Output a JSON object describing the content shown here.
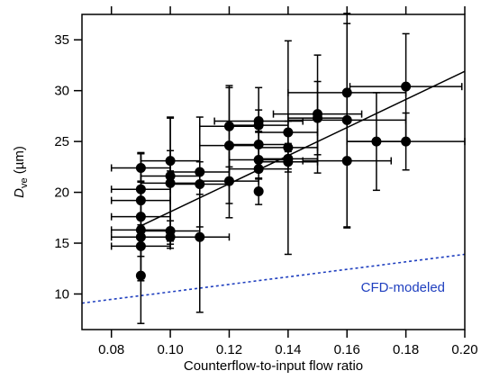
{
  "chart_data": {
    "type": "scatter",
    "xlabel": "Counterflow-to-input flow ratio",
    "ylabel_main": "D",
    "ylabel_sub": "ve",
    "ylabel_unit": " (µm)",
    "xlim": [
      0.07,
      0.2
    ],
    "ylim": [
      6.5,
      37.5
    ],
    "x_ticks": [
      0.08,
      0.1,
      0.12,
      0.14,
      0.16,
      0.18,
      0.2
    ],
    "x_tick_labels": [
      "0.08",
      "0.10",
      "0.12",
      "0.14",
      "0.16",
      "0.18",
      "0.20"
    ],
    "y_ticks": [
      10,
      15,
      20,
      25,
      30,
      35
    ],
    "y_tick_labels": [
      "10",
      "15",
      "20",
      "25",
      "30",
      "35"
    ],
    "grid": false,
    "annotation": {
      "text": "CFD-modeled",
      "color": "#1f3fbf",
      "x": 0.179,
      "y": 10.2
    },
    "colors": {
      "data": "#000000",
      "cfd": "#1f3fbf"
    },
    "series": [
      {
        "kind": "points_with_errorbars",
        "points": [
          {
            "x": 0.09,
            "y": 22.4,
            "xerr": 0.01,
            "yerr": 1.4
          },
          {
            "x": 0.09,
            "y": 20.3,
            "xerr": 0.01,
            "yerr": 3.5
          },
          {
            "x": 0.09,
            "y": 19.2,
            "xerr": 0.01,
            "yerr": 4.7
          },
          {
            "x": 0.09,
            "y": 17.6,
            "xerr": 0.01,
            "yerr": 6.3
          },
          {
            "x": 0.09,
            "y": 16.3,
            "xerr": 0.01,
            "yerr": 4.8
          },
          {
            "x": 0.09,
            "y": 15.6,
            "xerr": 0.01,
            "yerr": 1.0
          },
          {
            "x": 0.09,
            "y": 14.7,
            "xerr": 0.01,
            "yerr": 1.0
          },
          {
            "x": 0.09,
            "y": 11.8,
            "xerr": 0.0,
            "yerr": 4.7
          },
          {
            "x": 0.1,
            "y": 23.1,
            "xerr": 0.01,
            "yerr": 1.0
          },
          {
            "x": 0.1,
            "y": 21.6,
            "xerr": 0.01,
            "yerr": 5.8
          },
          {
            "x": 0.1,
            "y": 20.9,
            "xerr": 0.01,
            "yerr": 6.4
          },
          {
            "x": 0.1,
            "y": 16.2,
            "xerr": 0.01,
            "yerr": 1.0
          },
          {
            "x": 0.1,
            "y": 15.6,
            "xerr": 0.01,
            "yerr": 0.7
          },
          {
            "x": 0.11,
            "y": 22.0,
            "xerr": 0.01,
            "yerr": 5.4
          },
          {
            "x": 0.11,
            "y": 20.8,
            "xerr": 0.01,
            "yerr": 1.0
          },
          {
            "x": 0.11,
            "y": 15.6,
            "xerr": 0.01,
            "yerr": 7.4
          },
          {
            "x": 0.12,
            "y": 26.5,
            "xerr": 0.01,
            "yerr": 4.0
          },
          {
            "x": 0.12,
            "y": 24.6,
            "xerr": 0.01,
            "yerr": 5.7
          },
          {
            "x": 0.12,
            "y": 21.1,
            "xerr": 0.01,
            "yerr": 3.6
          },
          {
            "x": 0.13,
            "y": 27.0,
            "xerr": 0.015,
            "yerr": 1.1
          },
          {
            "x": 0.13,
            "y": 26.6,
            "xerr": 0.01,
            "yerr": 3.7
          },
          {
            "x": 0.13,
            "y": 24.7,
            "xerr": 0.01,
            "yerr": 1.3
          },
          {
            "x": 0.13,
            "y": 23.2,
            "xerr": 0.01,
            "yerr": 1.2
          },
          {
            "x": 0.13,
            "y": 22.3,
            "xerr": 0.01,
            "yerr": 1.0
          },
          {
            "x": 0.13,
            "y": 20.1,
            "xerr": 0.0,
            "yerr": 1.3
          },
          {
            "x": 0.14,
            "y": 25.9,
            "xerr": 0.01,
            "yerr": 1.1
          },
          {
            "x": 0.14,
            "y": 24.4,
            "xerr": 0.01,
            "yerr": 10.5
          },
          {
            "x": 0.14,
            "y": 23.3,
            "xerr": 0.01,
            "yerr": 1.0
          },
          {
            "x": 0.14,
            "y": 23.0,
            "xerr": 0.01,
            "yerr": 1.0
          },
          {
            "x": 0.15,
            "y": 27.7,
            "xerr": 0.015,
            "yerr": 5.8
          },
          {
            "x": 0.15,
            "y": 27.3,
            "xerr": 0.01,
            "yerr": 3.6
          },
          {
            "x": 0.16,
            "y": 29.8,
            "xerr": 0.02,
            "yerr": 6.8
          },
          {
            "x": 0.16,
            "y": 27.1,
            "xerr": 0.02,
            "yerr": 10.5
          },
          {
            "x": 0.16,
            "y": 23.1,
            "xerr": 0.015,
            "yerr": 6.6
          },
          {
            "x": 0.17,
            "y": 25.0,
            "xerr": 0.01,
            "yerr": 4.8
          },
          {
            "x": 0.18,
            "y": 30.4,
            "xerr": 0.019,
            "yerr": 5.2
          },
          {
            "x": 0.18,
            "y": 25.0,
            "xerr": 0.02,
            "yerr": 2.8
          }
        ]
      },
      {
        "kind": "fit_line",
        "color": "#000000",
        "x": [
          0.09,
          0.2
        ],
        "y": [
          16.7,
          31.9
        ]
      },
      {
        "kind": "dotted_line",
        "color": "#1f3fbf",
        "x": [
          0.07,
          0.2
        ],
        "y": [
          9.1,
          13.9
        ]
      }
    ]
  }
}
